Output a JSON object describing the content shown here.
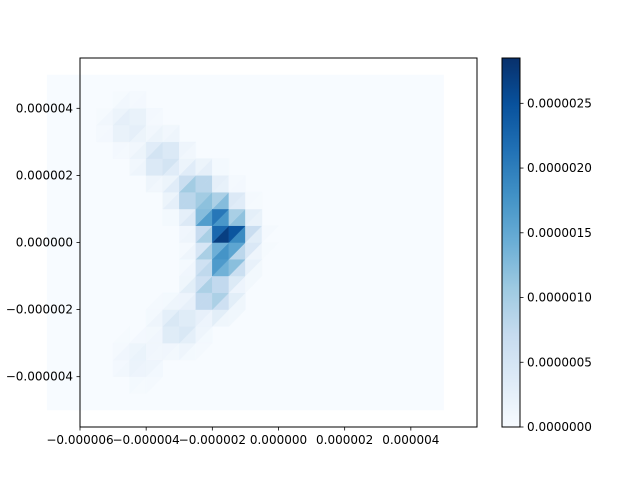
{
  "chart_data": {
    "type": "heatmap",
    "title": "",
    "xlabel": "",
    "ylabel": "",
    "xlim": [
      -6e-06,
      6e-06
    ],
    "ylim": [
      -5.5e-06,
      5.5e-06
    ],
    "x_ticks": [
      {
        "value": -6e-06,
        "label": "−0.000006"
      },
      {
        "value": -4e-06,
        "label": "−0.000004"
      },
      {
        "value": -2e-06,
        "label": "−0.000002"
      },
      {
        "value": 0.0,
        "label": "0.000000"
      },
      {
        "value": 2e-06,
        "label": "0.000002"
      },
      {
        "value": 4e-06,
        "label": "0.000004"
      }
    ],
    "y_ticks": [
      {
        "value": 4e-06,
        "label": "0.000004"
      },
      {
        "value": 2e-06,
        "label": "0.000002"
      },
      {
        "value": 0.0,
        "label": "0.000000"
      },
      {
        "value": -2e-06,
        "label": "−0.000002"
      },
      {
        "value": -4e-06,
        "label": "−0.000004"
      }
    ],
    "domain": {
      "x": [
        -7e-06,
        5e-06
      ],
      "y": [
        -5e-06,
        5e-06
      ]
    },
    "colormap": "Blues",
    "colorbar": {
      "range": [
        0,
        2.85e-06
      ],
      "ticks": [
        {
          "value": 0.0,
          "label": "0.0000000"
        },
        {
          "value": 5e-07,
          "label": "0.0000005"
        },
        {
          "value": 1e-06,
          "label": "0.0000010"
        },
        {
          "value": 1.5e-06,
          "label": "0.0000015"
        },
        {
          "value": 2e-06,
          "label": "0.0000020"
        },
        {
          "value": 2.5e-06,
          "label": "0.0000025"
        }
      ]
    },
    "hotspots": [
      {
        "x": -1.55e-06,
        "y": 2.5e-07,
        "value": 2.85e-06
      },
      {
        "x": -1.7e-06,
        "y": -5e-07,
        "value": 1.9e-06
      },
      {
        "x": -1.9e-06,
        "y": 8e-07,
        "value": 2.1e-06
      },
      {
        "x": -2.5e-06,
        "y": 1.5e-06,
        "value": 1.2e-06
      },
      {
        "x": -3.5e-06,
        "y": 2.5e-06,
        "value": 6e-07
      },
      {
        "x": -4.5e-06,
        "y": 3.5e-06,
        "value": 3e-07
      },
      {
        "x": -2e-06,
        "y": -1.5e-06,
        "value": 1.1e-06
      },
      {
        "x": -3e-06,
        "y": -2.5e-06,
        "value": 5e-07
      },
      {
        "x": -4.2e-06,
        "y": -3.5e-06,
        "value": 2e-07
      }
    ],
    "grid": false,
    "legend": "colorbar-right"
  }
}
